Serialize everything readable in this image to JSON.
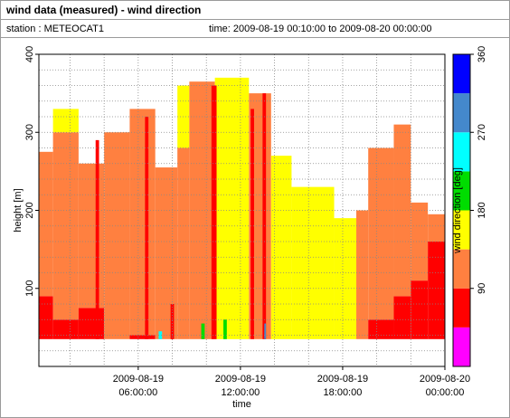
{
  "header": {
    "title": "wind data (measured) - wind direction",
    "station": "station : METEOCAT1",
    "time_range": "time: 2009-08-19 00:10:00 to 2009-08-20 00:00:00"
  },
  "chart_data": {
    "type": "heatmap",
    "xlabel": "time",
    "ylabel": "height [m]",
    "x_ticks": [
      {
        "line1": "2009-08-19",
        "line2": "06:00:00",
        "hour": 6
      },
      {
        "line1": "2009-08-19",
        "line2": "12:00:00",
        "hour": 12
      },
      {
        "line1": "2009-08-19",
        "line2": "18:00:00",
        "hour": 18
      },
      {
        "line1": "2009-08-20",
        "line2": "00:00:00",
        "hour": 24
      }
    ],
    "xlim_hours": [
      0.17,
      24
    ],
    "ylim": [
      0,
      400
    ],
    "y_ticks": [
      "100",
      "200",
      "300",
      "400"
    ],
    "colorbar": {
      "label": "wind direction [deg]",
      "range": [
        0,
        360
      ],
      "ticks": [
        "90",
        "180",
        "270",
        "360"
      ],
      "bands": [
        {
          "from": 0,
          "to": 45,
          "color": "#ff00ff"
        },
        {
          "from": 45,
          "to": 90,
          "color": "#ff0000"
        },
        {
          "from": 90,
          "to": 135,
          "color": "#ff8040"
        },
        {
          "from": 135,
          "to": 180,
          "color": "#ffff00"
        },
        {
          "from": 180,
          "to": 225,
          "color": "#00dd00"
        },
        {
          "from": 225,
          "to": 270,
          "color": "#00ffff"
        },
        {
          "from": 270,
          "to": 315,
          "color": "#4488cc"
        },
        {
          "from": 315,
          "to": 360,
          "color": "#0000ff"
        }
      ]
    },
    "profiles": {
      "bottom_height_m": 35,
      "segments": [
        {
          "from_h": 0.17,
          "to_h": 1.0,
          "top_m": 275,
          "layers": [
            {
              "to_m": 90,
              "dir": 70
            },
            {
              "to_m": 275,
              "dir": 112
            }
          ]
        },
        {
          "from_h": 1.0,
          "to_h": 2.5,
          "top_m": 330,
          "layers": [
            {
              "to_m": 60,
              "dir": 70
            },
            {
              "to_m": 300,
              "dir": 112
            },
            {
              "to_m": 330,
              "dir": 158
            }
          ]
        },
        {
          "from_h": 2.5,
          "to_h": 4.0,
          "top_m": 260,
          "layers": [
            {
              "to_m": 75,
              "dir": 70
            },
            {
              "to_m": 260,
              "dir": 112
            }
          ]
        },
        {
          "from_h": 4.0,
          "to_h": 5.5,
          "top_m": 300,
          "layers": [
            {
              "to_m": 300,
              "dir": 112
            }
          ]
        },
        {
          "from_h": 5.5,
          "to_h": 7.0,
          "top_m": 330,
          "layers": [
            {
              "to_m": 40,
              "dir": 70
            },
            {
              "to_m": 330,
              "dir": 112
            }
          ]
        },
        {
          "from_h": 7.0,
          "to_h": 8.3,
          "top_m": 255,
          "layers": [
            {
              "to_m": 255,
              "dir": 112
            }
          ]
        },
        {
          "from_h": 8.3,
          "to_h": 9.0,
          "top_m": 360,
          "layers": [
            {
              "to_m": 280,
              "dir": 112
            },
            {
              "to_m": 360,
              "dir": 158
            }
          ]
        },
        {
          "from_h": 9.0,
          "to_h": 10.5,
          "top_m": 365,
          "layers": [
            {
              "to_m": 365,
              "dir": 112
            }
          ]
        },
        {
          "from_h": 10.5,
          "to_h": 12.5,
          "top_m": 370,
          "layers": [
            {
              "to_m": 370,
              "dir": 158
            }
          ]
        },
        {
          "from_h": 12.5,
          "to_h": 13.8,
          "top_m": 350,
          "layers": [
            {
              "to_m": 350,
              "dir": 112
            }
          ]
        },
        {
          "from_h": 13.8,
          "to_h": 15.0,
          "top_m": 270,
          "layers": [
            {
              "to_m": 270,
              "dir": 158
            }
          ]
        },
        {
          "from_h": 15.0,
          "to_h": 17.5,
          "top_m": 230,
          "layers": [
            {
              "to_m": 230,
              "dir": 158
            }
          ]
        },
        {
          "from_h": 17.5,
          "to_h": 18.8,
          "top_m": 190,
          "layers": [
            {
              "to_m": 190,
              "dir": 158
            }
          ]
        },
        {
          "from_h": 18.8,
          "to_h": 19.5,
          "top_m": 200,
          "layers": [
            {
              "to_m": 200,
              "dir": 112
            }
          ]
        },
        {
          "from_h": 19.5,
          "to_h": 21.0,
          "top_m": 280,
          "layers": [
            {
              "to_m": 60,
              "dir": 70
            },
            {
              "to_m": 280,
              "dir": 112
            }
          ]
        },
        {
          "from_h": 21.0,
          "to_h": 22.0,
          "top_m": 310,
          "layers": [
            {
              "to_m": 90,
              "dir": 70
            },
            {
              "to_m": 310,
              "dir": 112
            }
          ]
        },
        {
          "from_h": 22.0,
          "to_h": 23.0,
          "top_m": 210,
          "layers": [
            {
              "to_m": 110,
              "dir": 70
            },
            {
              "to_m": 210,
              "dir": 112
            }
          ]
        },
        {
          "from_h": 23.0,
          "to_h": 24.0,
          "top_m": 195,
          "layers": [
            {
              "to_m": 160,
              "dir": 70
            },
            {
              "to_m": 195,
              "dir": 112
            }
          ]
        }
      ],
      "streaks": [
        {
          "from_h": 3.5,
          "to_h": 3.7,
          "from_m": 35,
          "to_m": 290,
          "dir": 70
        },
        {
          "from_h": 6.4,
          "to_h": 6.6,
          "from_m": 35,
          "to_m": 320,
          "dir": 70
        },
        {
          "from_h": 7.9,
          "to_h": 8.1,
          "from_m": 35,
          "to_m": 80,
          "dir": 70
        },
        {
          "from_h": 9.7,
          "to_h": 9.9,
          "from_m": 35,
          "to_m": 55,
          "dir": 200
        },
        {
          "from_h": 10.3,
          "to_h": 10.6,
          "from_m": 35,
          "to_m": 360,
          "dir": 70
        },
        {
          "from_h": 11.0,
          "to_h": 11.2,
          "from_m": 35,
          "to_m": 60,
          "dir": 200
        },
        {
          "from_h": 12.6,
          "to_h": 12.8,
          "from_m": 35,
          "to_m": 330,
          "dir": 70
        },
        {
          "from_h": 13.3,
          "to_h": 13.5,
          "from_m": 35,
          "to_m": 350,
          "dir": 70
        },
        {
          "from_h": 13.4,
          "to_h": 13.5,
          "from_m": 35,
          "to_m": 55,
          "dir": 300
        },
        {
          "from_h": 7.2,
          "to_h": 7.4,
          "from_m": 35,
          "to_m": 45,
          "dir": 250
        }
      ]
    }
  }
}
